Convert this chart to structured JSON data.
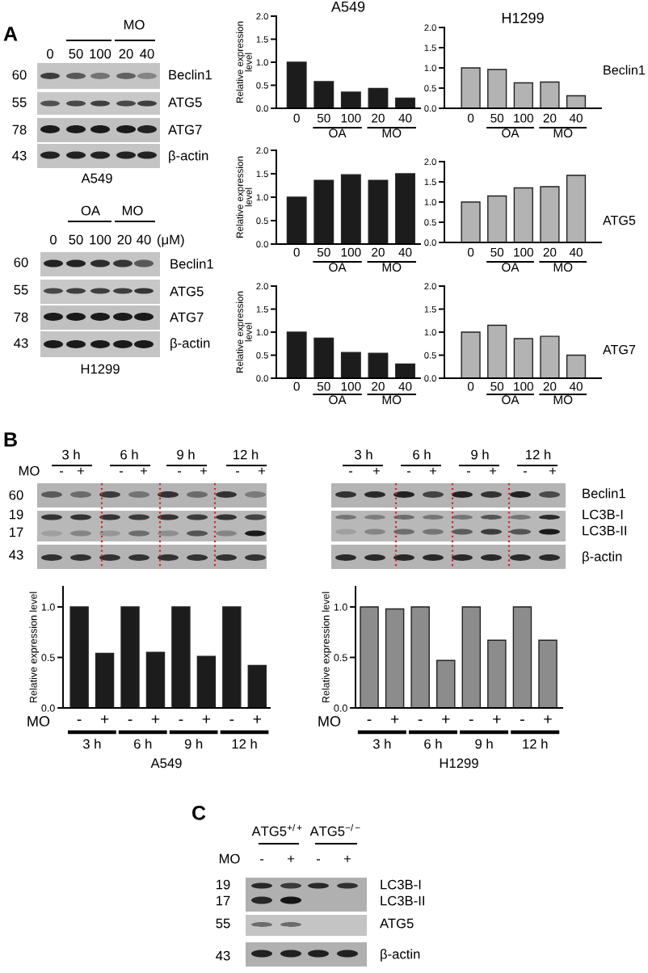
{
  "chart_data": [
    {
      "type": "bar",
      "title": "A549",
      "ylabel": "Relative expression\nlevel",
      "categories": [
        "0",
        "50",
        "100",
        "20",
        "40"
      ],
      "values": [
        1.0,
        0.58,
        0.35,
        0.43,
        0.22
      ],
      "color": "#1c1c1c",
      "ylim": [
        0,
        2
      ],
      "yticks": [
        {
          "value": 0,
          "label": "0.0"
        },
        {
          "value": 0.5,
          "label": "0.5"
        },
        {
          "value": 1,
          "label": "1.0"
        },
        {
          "value": 1.5,
          "label": "1.5"
        },
        {
          "value": 2,
          "label": "2.0"
        }
      ],
      "annotations": [
        "OA",
        "MO",
        "A",
        "MO",
        "0",
        "50",
        "100",
        "20",
        "40",
        "60",
        "55",
        "78",
        "43",
        "Beclin1",
        "ATG5",
        "ATG7",
        "β-actin",
        "A549"
      ]
    },
    {
      "type": "bar",
      "title": "H1299",
      "categories": [
        "0",
        "50",
        "100",
        "20",
        "40"
      ],
      "values": [
        1.0,
        0.96,
        0.63,
        0.65,
        0.31
      ],
      "color": "#b3b3b3",
      "ylim": [
        0,
        2
      ],
      "yticks": [
        {
          "value": 0,
          "label": "0.0"
        },
        {
          "value": 0.5,
          "label": "0.5"
        },
        {
          "value": 1,
          "label": "1.0"
        },
        {
          "value": 1.5,
          "label": "1.5"
        },
        {
          "value": 2,
          "label": "2.0"
        }
      ],
      "annotations": [
        "OA",
        "MO",
        "Beclin1"
      ]
    },
    {
      "type": "bar",
      "ylabel": "Relative expression\nlevel",
      "categories": [
        "0",
        "50",
        "100",
        "20",
        "40"
      ],
      "values": [
        1.0,
        1.36,
        1.48,
        1.36,
        1.5
      ],
      "color": "#1c1c1c",
      "ylim": [
        0,
        2
      ],
      "yticks": [
        {
          "value": 0,
          "label": "0.0"
        },
        {
          "value": 0.5,
          "label": "0.5"
        },
        {
          "value": 1,
          "label": "1.0"
        },
        {
          "value": 1.5,
          "label": "1.5"
        },
        {
          "value": 2,
          "label": "2.0"
        }
      ],
      "annotations": [
        "OA",
        "MO"
      ]
    },
    {
      "type": "bar",
      "categories": [
        "0",
        "50",
        "100",
        "20",
        "40"
      ],
      "values": [
        1.0,
        1.15,
        1.35,
        1.38,
        1.66
      ],
      "color": "#b3b3b3",
      "ylim": [
        0,
        2
      ],
      "yticks": [
        {
          "value": 0,
          "label": "0.0"
        },
        {
          "value": 0.5,
          "label": "0.5"
        },
        {
          "value": 1,
          "label": "1.0"
        },
        {
          "value": 1.5,
          "label": "1.5"
        },
        {
          "value": 2,
          "label": "2.0"
        }
      ],
      "annotations": [
        "OA",
        "MO",
        "ATG5"
      ]
    },
    {
      "type": "bar",
      "ylabel": "Relative expression\nlevel",
      "categories": [
        "0",
        "50",
        "100",
        "20",
        "40"
      ],
      "values": [
        1.0,
        0.87,
        0.56,
        0.54,
        0.31
      ],
      "color": "#1c1c1c",
      "ylim": [
        0,
        2
      ],
      "yticks": [
        {
          "value": 0,
          "label": "0.0"
        },
        {
          "value": 0.5,
          "label": "0.5"
        },
        {
          "value": 1,
          "label": "1.0"
        },
        {
          "value": 1.5,
          "label": "1.5"
        },
        {
          "value": 2,
          "label": "2.0"
        }
      ],
      "annotations": [
        "OA",
        "MO",
        "OA",
        "MO",
        "0",
        "50",
        "100",
        "20",
        "40",
        "(μM)",
        "60",
        "55",
        "78",
        "43",
        "Beclin1",
        "ATG5",
        "ATG7",
        "β-actin",
        "H1299"
      ]
    },
    {
      "type": "bar",
      "categories": [
        "0",
        "50",
        "100",
        "20",
        "40"
      ],
      "values": [
        1.0,
        1.15,
        0.86,
        0.91,
        0.5
      ],
      "color": "#b3b3b3",
      "ylim": [
        0,
        2
      ],
      "yticks": [
        {
          "value": 0,
          "label": "0.0"
        },
        {
          "value": 0.5,
          "label": "0.5"
        },
        {
          "value": 1,
          "label": "1.0"
        },
        {
          "value": 1.5,
          "label": "1.5"
        },
        {
          "value": 2,
          "label": "2.0"
        }
      ],
      "annotations": [
        "OA",
        "MO",
        "ATG7"
      ]
    },
    {
      "type": "bar",
      "ylabel": "Relative expression level",
      "xlabel": "A549",
      "categories": [
        "-",
        "+",
        "-",
        "+",
        "-",
        "+",
        "-",
        "+"
      ],
      "values": [
        1.0,
        0.54,
        1.0,
        0.55,
        1.0,
        0.51,
        1.0,
        0.42
      ],
      "color": "#1c1c1c",
      "ylim": [
        0,
        1.2
      ],
      "yticks": [
        {
          "value": 0,
          "label": "0.0"
        },
        {
          "value": 0.5,
          "label": "0.5"
        },
        {
          "value": 1,
          "label": "1.0"
        }
      ],
      "annotations": [
        "MO",
        "3 h",
        "6 h",
        "9 h",
        "12 h",
        "B",
        "3 h",
        "6 h",
        "9 h",
        "12 h",
        "MO",
        "-",
        "+",
        "-",
        "+",
        "-",
        "+",
        "-",
        "+",
        "60",
        "19",
        "17",
        "43"
      ]
    },
    {
      "type": "bar",
      "ylabel": "Relative expression level",
      "xlabel": "H1299",
      "categories": [
        "-",
        "+",
        "-",
        "+",
        "-",
        "+",
        "-",
        "+"
      ],
      "values": [
        1.0,
        0.98,
        1.0,
        0.47,
        1.0,
        0.67,
        1.0,
        0.67
      ],
      "color": "#8c8c8c",
      "ylim": [
        0,
        1.2
      ],
      "yticks": [
        {
          "value": 0,
          "label": "0.0"
        },
        {
          "value": 0.5,
          "label": "0.5"
        },
        {
          "value": 1,
          "label": "1.0"
        }
      ],
      "annotations": [
        "MO",
        "3 h",
        "6 h",
        "9 h",
        "12 h",
        "3 h",
        "6 h",
        "9 h",
        "12 h",
        "-",
        "+",
        "-",
        "+",
        "-",
        "+",
        "-",
        "+",
        "Beclin1",
        "LC3B-I",
        "LC3B-II",
        "β-actin",
        "C",
        "ATG5$^{+/+}$",
        "ATG5$^{−/−}$",
        "MO",
        "-",
        "+",
        "-",
        "+",
        "19",
        "17",
        "55",
        "43",
        "LC3B-I",
        "LC3B-II",
        "ATG5",
        "β-actin"
      ]
    }
  ]
}
